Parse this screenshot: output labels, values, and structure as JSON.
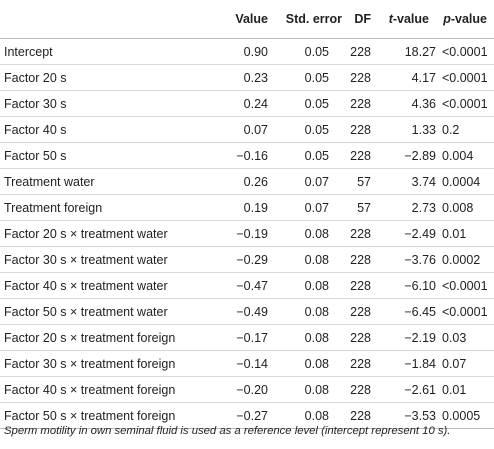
{
  "table": {
    "headers": {
      "label": "",
      "value": "Value",
      "std_error": "Std. error",
      "df": "DF",
      "t_value_italic": "t",
      "t_value_rest": "-value",
      "p_value_italic": "p",
      "p_value_rest": "-value"
    },
    "rows": [
      {
        "label": "Intercept",
        "value": "0.90",
        "std_error": "0.05",
        "df": "228",
        "t_value": "18.27",
        "p_value": "<0.0001"
      },
      {
        "label": "Factor 20 s",
        "value": "0.23",
        "std_error": "0.05",
        "df": "228",
        "t_value": "4.17",
        "p_value": "<0.0001"
      },
      {
        "label": "Factor 30 s",
        "value": "0.24",
        "std_error": "0.05",
        "df": "228",
        "t_value": "4.36",
        "p_value": "<0.0001"
      },
      {
        "label": "Factor 40 s",
        "value": "0.07",
        "std_error": "0.05",
        "df": "228",
        "t_value": "1.33",
        "p_value": "0.2"
      },
      {
        "label": "Factor 50 s",
        "value": "−0.16",
        "std_error": "0.05",
        "df": "228",
        "t_value": "−2.89",
        "p_value": "0.004"
      },
      {
        "label": "Treatment water",
        "value": "0.26",
        "std_error": "0.07",
        "df": "57",
        "t_value": "3.74",
        "p_value": "0.0004"
      },
      {
        "label": "Treatment foreign",
        "value": "0.19",
        "std_error": "0.07",
        "df": "57",
        "t_value": "2.73",
        "p_value": "0.008"
      },
      {
        "label": "Factor 20 s × treatment water",
        "value": "−0.19",
        "std_error": "0.08",
        "df": "228",
        "t_value": "−2.49",
        "p_value": "0.01"
      },
      {
        "label": "Factor 30 s × treatment water",
        "value": "−0.29",
        "std_error": "0.08",
        "df": "228",
        "t_value": "−3.76",
        "p_value": "0.0002"
      },
      {
        "label": "Factor 40 s × treatment water",
        "value": "−0.47",
        "std_error": "0.08",
        "df": "228",
        "t_value": "−6.10",
        "p_value": "<0.0001"
      },
      {
        "label": "Factor 50 s × treatment water",
        "value": "−0.49",
        "std_error": "0.08",
        "df": "228",
        "t_value": "−6.45",
        "p_value": "<0.0001"
      },
      {
        "label": "Factor 20 s × treatment foreign",
        "value": "−0.17",
        "std_error": "0.08",
        "df": "228",
        "t_value": "−2.19",
        "p_value": "0.03"
      },
      {
        "label": "Factor 30 s × treatment foreign",
        "value": "−0.14",
        "std_error": "0.08",
        "df": "228",
        "t_value": "−1.84",
        "p_value": "0.07"
      },
      {
        "label": "Factor 40 s × treatment foreign",
        "value": "−0.20",
        "std_error": "0.08",
        "df": "228",
        "t_value": "−2.61",
        "p_value": "0.01"
      },
      {
        "label": "Factor 50 s × treatment foreign",
        "value": "−0.27",
        "std_error": "0.08",
        "df": "228",
        "t_value": "−3.53",
        "p_value": "0.0005"
      }
    ]
  },
  "footnote": "Sperm motility in own seminal fluid is used as a reference level (intercept represent 10 s)."
}
